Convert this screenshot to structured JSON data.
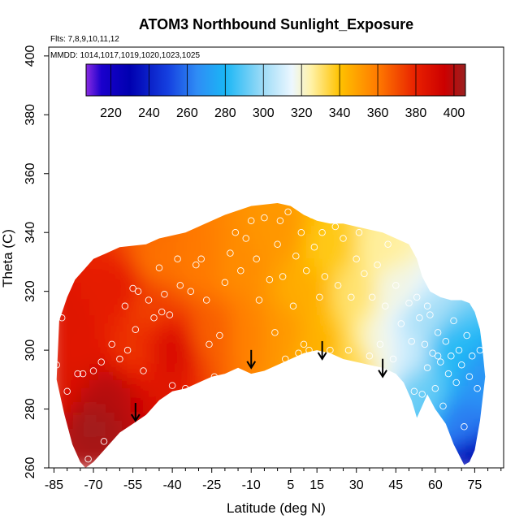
{
  "chart_data": {
    "type": "heatmap",
    "title": "ATOM3 Northbound Sunlight_Exposure",
    "annotations": [
      "Flts: 7,8,9,10,11,12",
      "MMDD: 1014,1017,1019,1020,1023,1025"
    ],
    "xlabel": "Latitude (deg N)",
    "ylabel": "Theta (C)",
    "xlim": [
      -87,
      86
    ],
    "ylim": [
      260,
      403
    ],
    "x_ticks": [
      -85,
      -70,
      -55,
      -40,
      -25,
      -10,
      5,
      15,
      30,
      45,
      60,
      75
    ],
    "y_ticks": [
      260,
      280,
      300,
      320,
      340,
      360,
      380,
      400
    ],
    "colorbar": {
      "range": [
        207,
        406
      ],
      "ticks": [
        220,
        240,
        260,
        280,
        300,
        320,
        340,
        360,
        380,
        400
      ],
      "stops": [
        {
          "v": 207,
          "c": "#8a2be2"
        },
        {
          "v": 215,
          "c": "#1a00cc"
        },
        {
          "v": 230,
          "c": "#0000b0"
        },
        {
          "v": 250,
          "c": "#1540e0"
        },
        {
          "v": 265,
          "c": "#2f8cf5"
        },
        {
          "v": 280,
          "c": "#1ab6f5"
        },
        {
          "v": 300,
          "c": "#9fdcf7"
        },
        {
          "v": 315,
          "c": "#ecf7ff"
        },
        {
          "v": 325,
          "c": "#fff2a8"
        },
        {
          "v": 340,
          "c": "#ffc200"
        },
        {
          "v": 360,
          "c": "#ff7a00"
        },
        {
          "v": 380,
          "c": "#e82000"
        },
        {
          "v": 395,
          "c": "#cc0000"
        },
        {
          "v": 406,
          "c": "#9a2020"
        }
      ]
    },
    "field_samples": [
      {
        "lat": -85,
        "theta": 288,
        "value": 386
      },
      {
        "lat": -82,
        "theta": 310,
        "value": 385
      },
      {
        "lat": -75,
        "theta": 300,
        "value": 384
      },
      {
        "lat": -70,
        "theta": 275,
        "value": 404
      },
      {
        "lat": -65,
        "theta": 285,
        "value": 400
      },
      {
        "lat": -60,
        "theta": 320,
        "value": 382
      },
      {
        "lat": -55,
        "theta": 300,
        "value": 376
      },
      {
        "lat": -50,
        "theta": 315,
        "value": 373
      },
      {
        "lat": -45,
        "theta": 330,
        "value": 362
      },
      {
        "lat": -40,
        "theta": 300,
        "value": 388
      },
      {
        "lat": -30,
        "theta": 330,
        "value": 360
      },
      {
        "lat": -25,
        "theta": 305,
        "value": 366
      },
      {
        "lat": -15,
        "theta": 330,
        "value": 355
      },
      {
        "lat": -10,
        "theta": 305,
        "value": 358
      },
      {
        "lat": 0,
        "theta": 340,
        "value": 352
      },
      {
        "lat": 0,
        "theta": 305,
        "value": 352
      },
      {
        "lat": 10,
        "theta": 320,
        "value": 346
      },
      {
        "lat": 15,
        "theta": 300,
        "value": 345
      },
      {
        "lat": 20,
        "theta": 335,
        "value": 338
      },
      {
        "lat": 30,
        "theta": 295,
        "value": 333
      },
      {
        "lat": 30,
        "theta": 320,
        "value": 330
      },
      {
        "lat": 40,
        "theta": 335,
        "value": 326
      },
      {
        "lat": 40,
        "theta": 300,
        "value": 318
      },
      {
        "lat": 45,
        "theta": 320,
        "value": 318
      },
      {
        "lat": 50,
        "theta": 300,
        "value": 308
      },
      {
        "lat": 55,
        "theta": 285,
        "value": 292
      },
      {
        "lat": 55,
        "theta": 310,
        "value": 302
      },
      {
        "lat": 65,
        "theta": 300,
        "value": 282
      },
      {
        "lat": 70,
        "theta": 275,
        "value": 262
      },
      {
        "lat": 75,
        "theta": 262,
        "value": 230
      },
      {
        "lat": 78,
        "theta": 290,
        "value": 268
      }
    ],
    "upper_boundary": [
      {
        "lat": -83,
        "theta": 310
      },
      {
        "lat": -80,
        "theta": 318
      },
      {
        "lat": -77,
        "theta": 324
      },
      {
        "lat": -73,
        "theta": 328
      },
      {
        "lat": -70,
        "theta": 331
      },
      {
        "lat": -65,
        "theta": 333
      },
      {
        "lat": -60,
        "theta": 335
      },
      {
        "lat": -50,
        "theta": 336
      },
      {
        "lat": -45,
        "theta": 338
      },
      {
        "lat": -35,
        "theta": 340
      },
      {
        "lat": -30,
        "theta": 342
      },
      {
        "lat": -20,
        "theta": 346
      },
      {
        "lat": -10,
        "theta": 349
      },
      {
        "lat": 0,
        "theta": 350
      },
      {
        "lat": 5,
        "theta": 349
      },
      {
        "lat": 10,
        "theta": 346
      },
      {
        "lat": 15,
        "theta": 344
      },
      {
        "lat": 20,
        "theta": 343
      },
      {
        "lat": 25,
        "theta": 343
      },
      {
        "lat": 30,
        "theta": 342
      },
      {
        "lat": 35,
        "theta": 341
      },
      {
        "lat": 40,
        "theta": 340
      },
      {
        "lat": 45,
        "theta": 338
      },
      {
        "lat": 50,
        "theta": 336
      },
      {
        "lat": 53,
        "theta": 331
      },
      {
        "lat": 55,
        "theta": 325
      },
      {
        "lat": 58,
        "theta": 320
      },
      {
        "lat": 62,
        "theta": 318
      },
      {
        "lat": 66,
        "theta": 317
      },
      {
        "lat": 70,
        "theta": 317
      },
      {
        "lat": 73,
        "theta": 316
      },
      {
        "lat": 75,
        "theta": 313
      },
      {
        "lat": 77,
        "theta": 307
      },
      {
        "lat": 78,
        "theta": 300
      },
      {
        "lat": 79,
        "theta": 291
      }
    ],
    "lower_boundary": [
      {
        "lat": 79,
        "theta": 291
      },
      {
        "lat": 77,
        "theta": 276
      },
      {
        "lat": 75,
        "theta": 266
      },
      {
        "lat": 73,
        "theta": 262
      },
      {
        "lat": 71,
        "theta": 261
      },
      {
        "lat": 67,
        "theta": 268
      },
      {
        "lat": 64,
        "theta": 275
      },
      {
        "lat": 60,
        "theta": 280
      },
      {
        "lat": 57,
        "theta": 285
      },
      {
        "lat": 55,
        "theta": 281
      },
      {
        "lat": 53,
        "theta": 277
      },
      {
        "lat": 51,
        "theta": 283
      },
      {
        "lat": 48,
        "theta": 289
      },
      {
        "lat": 45,
        "theta": 292
      },
      {
        "lat": 40,
        "theta": 294
      },
      {
        "lat": 35,
        "theta": 295
      },
      {
        "lat": 30,
        "theta": 296
      },
      {
        "lat": 25,
        "theta": 297
      },
      {
        "lat": 20,
        "theta": 299
      },
      {
        "lat": 15,
        "theta": 300
      },
      {
        "lat": 10,
        "theta": 299
      },
      {
        "lat": 5,
        "theta": 297
      },
      {
        "lat": 0,
        "theta": 295
      },
      {
        "lat": -5,
        "theta": 293
      },
      {
        "lat": -10,
        "theta": 292
      },
      {
        "lat": -15,
        "theta": 294
      },
      {
        "lat": -20,
        "theta": 292
      },
      {
        "lat": -25,
        "theta": 291
      },
      {
        "lat": -30,
        "theta": 289
      },
      {
        "lat": -35,
        "theta": 287
      },
      {
        "lat": -40,
        "theta": 286
      },
      {
        "lat": -45,
        "theta": 283
      },
      {
        "lat": -50,
        "theta": 278
      },
      {
        "lat": -55,
        "theta": 275
      },
      {
        "lat": -60,
        "theta": 272
      },
      {
        "lat": -65,
        "theta": 267
      },
      {
        "lat": -70,
        "theta": 262
      },
      {
        "lat": -73,
        "theta": 260
      },
      {
        "lat": -75,
        "theta": 262
      },
      {
        "lat": -78,
        "theta": 268
      },
      {
        "lat": -81,
        "theta": 278
      },
      {
        "lat": -84,
        "theta": 290
      },
      {
        "lat": -83,
        "theta": 310
      }
    ],
    "sample_points": [
      {
        "lat": -84,
        "theta": 295
      },
      {
        "lat": -82,
        "theta": 311
      },
      {
        "lat": -80,
        "theta": 286
      },
      {
        "lat": -78,
        "theta": 262
      },
      {
        "lat": -76,
        "theta": 292
      },
      {
        "lat": -74,
        "theta": 292
      },
      {
        "lat": -72,
        "theta": 263
      },
      {
        "lat": -70,
        "theta": 293
      },
      {
        "lat": -67,
        "theta": 296
      },
      {
        "lat": -66,
        "theta": 269
      },
      {
        "lat": -63,
        "theta": 302
      },
      {
        "lat": -60,
        "theta": 297
      },
      {
        "lat": -58,
        "theta": 315
      },
      {
        "lat": -57,
        "theta": 300
      },
      {
        "lat": -55,
        "theta": 321
      },
      {
        "lat": -54,
        "theta": 307
      },
      {
        "lat": -53,
        "theta": 320
      },
      {
        "lat": -51,
        "theta": 293
      },
      {
        "lat": -49,
        "theta": 317
      },
      {
        "lat": -47,
        "theta": 311
      },
      {
        "lat": -45,
        "theta": 328
      },
      {
        "lat": -43,
        "theta": 319
      },
      {
        "lat": -41,
        "theta": 312
      },
      {
        "lat": -40,
        "theta": 288
      },
      {
        "lat": -38,
        "theta": 331
      },
      {
        "lat": -37,
        "theta": 322
      },
      {
        "lat": -35,
        "theta": 287
      },
      {
        "lat": -33,
        "theta": 320
      },
      {
        "lat": -31,
        "theta": 329
      },
      {
        "lat": -29,
        "theta": 331
      },
      {
        "lat": -27,
        "theta": 317
      },
      {
        "lat": -26,
        "theta": 302
      },
      {
        "lat": -24,
        "theta": 291
      },
      {
        "lat": -22,
        "theta": 305
      },
      {
        "lat": -20,
        "theta": 323
      },
      {
        "lat": -18,
        "theta": 333
      },
      {
        "lat": -16,
        "theta": 340
      },
      {
        "lat": -14,
        "theta": 327
      },
      {
        "lat": -12,
        "theta": 338
      },
      {
        "lat": -10,
        "theta": 344
      },
      {
        "lat": -8,
        "theta": 331
      },
      {
        "lat": -7,
        "theta": 317
      },
      {
        "lat": -5,
        "theta": 345
      },
      {
        "lat": -3,
        "theta": 324
      },
      {
        "lat": -1,
        "theta": 306
      },
      {
        "lat": 0,
        "theta": 336
      },
      {
        "lat": 1,
        "theta": 344
      },
      {
        "lat": 2,
        "theta": 325
      },
      {
        "lat": 3,
        "theta": 297
      },
      {
        "lat": 4,
        "theta": 347
      },
      {
        "lat": 6,
        "theta": 315
      },
      {
        "lat": 7,
        "theta": 332
      },
      {
        "lat": 8,
        "theta": 299
      },
      {
        "lat": 9,
        "theta": 340
      },
      {
        "lat": 10,
        "theta": 302
      },
      {
        "lat": 11,
        "theta": 327
      },
      {
        "lat": 12,
        "theta": 300
      },
      {
        "lat": 13,
        "theta": 346
      },
      {
        "lat": 14,
        "theta": 335
      },
      {
        "lat": 16,
        "theta": 318
      },
      {
        "lat": 17,
        "theta": 340
      },
      {
        "lat": 18,
        "theta": 325
      },
      {
        "lat": 20,
        "theta": 300
      },
      {
        "lat": 22,
        "theta": 342
      },
      {
        "lat": 23,
        "theta": 322
      },
      {
        "lat": 25,
        "theta": 338
      },
      {
        "lat": 27,
        "theta": 300
      },
      {
        "lat": 28,
        "theta": 318
      },
      {
        "lat": 30,
        "theta": 331
      },
      {
        "lat": 31,
        "theta": 340
      },
      {
        "lat": 33,
        "theta": 326
      },
      {
        "lat": 35,
        "theta": 298
      },
      {
        "lat": 36,
        "theta": 318
      },
      {
        "lat": 38,
        "theta": 329
      },
      {
        "lat": 39,
        "theta": 302
      },
      {
        "lat": 41,
        "theta": 315
      },
      {
        "lat": 42,
        "theta": 336
      },
      {
        "lat": 44,
        "theta": 297
      },
      {
        "lat": 45,
        "theta": 322
      },
      {
        "lat": 47,
        "theta": 309
      },
      {
        "lat": 48,
        "theta": 286
      },
      {
        "lat": 50,
        "theta": 316
      },
      {
        "lat": 51,
        "theta": 303
      },
      {
        "lat": 52,
        "theta": 286
      },
      {
        "lat": 53,
        "theta": 318
      },
      {
        "lat": 54,
        "theta": 311
      },
      {
        "lat": 55,
        "theta": 285
      },
      {
        "lat": 56,
        "theta": 302
      },
      {
        "lat": 57,
        "theta": 294
      },
      {
        "lat": 58,
        "theta": 312
      },
      {
        "lat": 59,
        "theta": 299
      },
      {
        "lat": 60,
        "theta": 287
      },
      {
        "lat": 61,
        "theta": 306
      },
      {
        "lat": 62,
        "theta": 296
      },
      {
        "lat": 63,
        "theta": 281
      },
      {
        "lat": 64,
        "theta": 303
      },
      {
        "lat": 65,
        "theta": 292
      },
      {
        "lat": 66,
        "theta": 298
      },
      {
        "lat": 67,
        "theta": 310
      },
      {
        "lat": 68,
        "theta": 289
      },
      {
        "lat": 69,
        "theta": 300
      },
      {
        "lat": 70,
        "theta": 295
      },
      {
        "lat": 71,
        "theta": 274
      },
      {
        "lat": 72,
        "theta": 305
      },
      {
        "lat": 73,
        "theta": 291
      },
      {
        "lat": 74,
        "theta": 298
      },
      {
        "lat": 76,
        "theta": 287
      },
      {
        "lat": 77,
        "theta": 300
      },
      {
        "lat": 57,
        "theta": 315
      },
      {
        "lat": 61,
        "theta": 298
      },
      {
        "lat": -44,
        "theta": 313
      }
    ],
    "arrows": [
      {
        "lat": -54,
        "theta": 276
      },
      {
        "lat": -10,
        "theta": 294
      },
      {
        "lat": 17,
        "theta": 297
      },
      {
        "lat": 40,
        "theta": 291
      }
    ],
    "colors": {
      "sample_point_stroke": "#ffffff",
      "arrow": "#000000",
      "frame": "#000000"
    }
  }
}
